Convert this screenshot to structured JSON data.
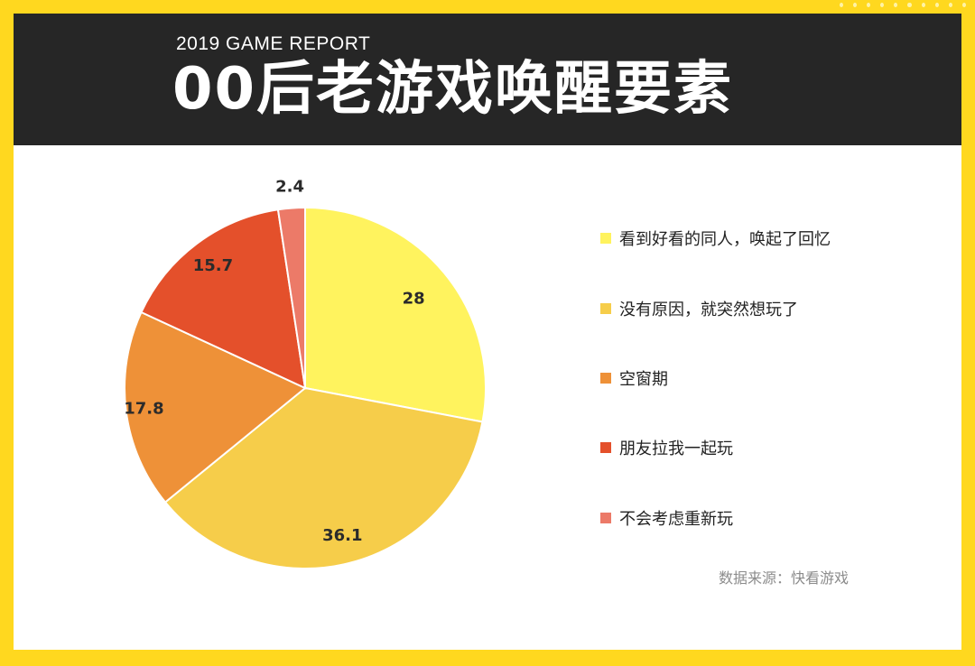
{
  "header": {
    "subtitle": "2019 GAME REPORT",
    "title": "00后老游戏唤醒要素"
  },
  "chart_data": {
    "type": "pie",
    "categories": [
      "看到好看的同人，唤起了回忆",
      "没有原因，就突然想玩了",
      "空窗期",
      "朋友拉我一起玩",
      "不会考虑重新玩"
    ],
    "values": [
      28,
      36.1,
      17.8,
      15.7,
      2.4
    ],
    "labels": [
      "28",
      "36.1",
      "17.8",
      "15.7",
      "2.4"
    ],
    "colors": [
      "#fff35e",
      "#f6cd4a",
      "#ee9138",
      "#e4502b",
      "#ec7a68"
    ],
    "start_angle": "12 o'clock",
    "direction": "clockwise",
    "legend_position": "right",
    "title": "",
    "xlabel": "",
    "ylabel": ""
  },
  "source": "数据来源：快看游戏"
}
